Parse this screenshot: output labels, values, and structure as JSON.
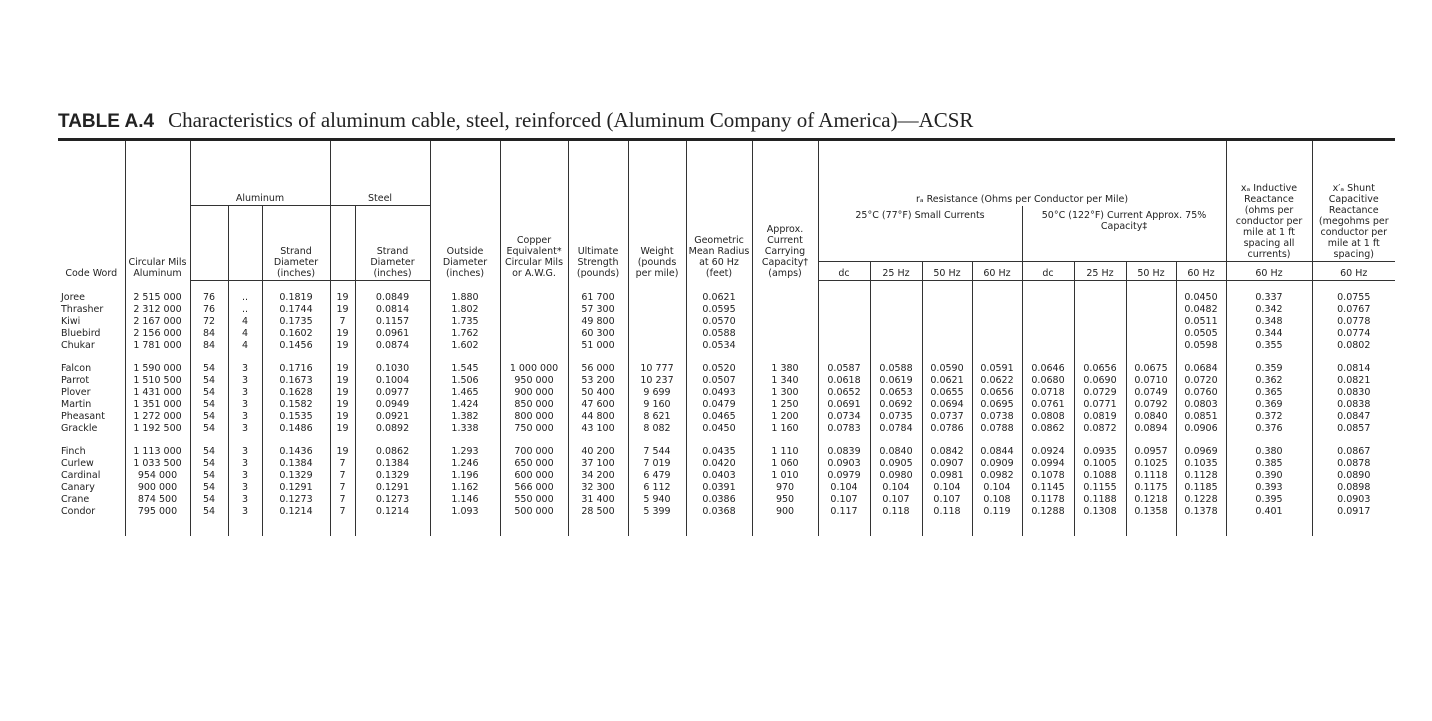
{
  "title": {
    "label": "TABLE A.4",
    "text": "Characteristics of aluminum cable, steel, reinforced (Aluminum Company of America)—ACSR"
  },
  "table": {
    "header": {
      "code_word": "Code Word",
      "circular_mils": "Circular Mils Aluminum",
      "aluminum": "Aluminum",
      "al_strand_diameter": "Strand Diameter (inches)",
      "steel": "Steel",
      "steel_strand_diameter": "Strand Diameter (inches)",
      "outside_diameter": "Outside Diameter (inches)",
      "copper_equivalent": "Copper Equivalent* Circular Mils or A.W.G.",
      "ultimate_strength": "Ultimate Strength (pounds)",
      "weight": "Weight (pounds per mile)",
      "gmr": "Geometric Mean Radius at 60 Hz (feet)",
      "current": "Approx. Current Carrying Capacity† (amps)",
      "resistance": "rₐ Resistance (Ohms per Conductor per Mile)",
      "resistance_25c": "25°C (77°F) Small Currents",
      "resistance_50c": "50°C (122°F) Current Approx. 75% Capacity‡",
      "frequencies": [
        "dc",
        "25 Hz",
        "50 Hz",
        "60 Hz",
        "dc",
        "25 Hz",
        "50 Hz",
        "60 Hz"
      ],
      "inductive": "xₐ Inductive Reactance (ohms per conductor per mile at 1 ft spacing all currents)",
      "inductive_freq": "60 Hz",
      "capacitive": "x′ₐ Shunt Capacitive Reactance (megohms per conductor per mile at 1 ft spacing)",
      "capacitive_freq": "60 Hz"
    },
    "groups": [
      [
        [
          "Joree",
          "2 515 000",
          "76",
          "..",
          "0.1819",
          "19",
          "0.0849",
          "1.880",
          null,
          "61 700",
          null,
          "0.0621",
          null,
          null,
          null,
          null,
          null,
          null,
          null,
          null,
          "0.0450",
          "0.337",
          "0.0755"
        ],
        [
          "Thrasher",
          "2 312 000",
          "76",
          "..",
          "0.1744",
          "19",
          "0.0814",
          "1.802",
          null,
          "57 300",
          null,
          "0.0595",
          null,
          null,
          null,
          null,
          null,
          null,
          null,
          null,
          "0.0482",
          "0.342",
          "0.0767"
        ],
        [
          "Kiwi",
          "2 167 000",
          "72",
          "4",
          "0.1735",
          "7",
          "0.1157",
          "1.735",
          null,
          "49 800",
          null,
          "0.0570",
          null,
          null,
          null,
          null,
          null,
          null,
          null,
          null,
          "0.0511",
          "0.348",
          "0.0778"
        ],
        [
          "Bluebird",
          "2 156 000",
          "84",
          "4",
          "0.1602",
          "19",
          "0.0961",
          "1.762",
          null,
          "60 300",
          null,
          "0.0588",
          null,
          null,
          null,
          null,
          null,
          null,
          null,
          null,
          "0.0505",
          "0.344",
          "0.0774"
        ],
        [
          "Chukar",
          "1 781 000",
          "84",
          "4",
          "0.1456",
          "19",
          "0.0874",
          "1.602",
          null,
          "51 000",
          null,
          "0.0534",
          null,
          null,
          null,
          null,
          null,
          null,
          null,
          null,
          "0.0598",
          "0.355",
          "0.0802"
        ]
      ],
      [
        [
          "Falcon",
          "1 590 000",
          "54",
          "3",
          "0.1716",
          "19",
          "0.1030",
          "1.545",
          "1 000 000",
          "56 000",
          "10 777",
          "0.0520",
          "1 380",
          "0.0587",
          "0.0588",
          "0.0590",
          "0.0591",
          "0.0646",
          "0.0656",
          "0.0675",
          "0.0684",
          "0.359",
          "0.0814"
        ],
        [
          "Parrot",
          "1 510 500",
          "54",
          "3",
          "0.1673",
          "19",
          "0.1004",
          "1.506",
          "950 000",
          "53 200",
          "10 237",
          "0.0507",
          "1 340",
          "0.0618",
          "0.0619",
          "0.0621",
          "0.0622",
          "0.0680",
          "0.0690",
          "0.0710",
          "0.0720",
          "0.362",
          "0.0821"
        ],
        [
          "Plover",
          "1 431 000",
          "54",
          "3",
          "0.1628",
          "19",
          "0.0977",
          "1.465",
          "900 000",
          "50 400",
          "9 699",
          "0.0493",
          "1 300",
          "0.0652",
          "0.0653",
          "0.0655",
          "0.0656",
          "0.0718",
          "0.0729",
          "0.0749",
          "0.0760",
          "0.365",
          "0.0830"
        ],
        [
          "Martin",
          "1 351 000",
          "54",
          "3",
          "0.1582",
          "19",
          "0.0949",
          "1.424",
          "850 000",
          "47 600",
          "9 160",
          "0.0479",
          "1 250",
          "0.0691",
          "0.0692",
          "0.0694",
          "0.0695",
          "0.0761",
          "0.0771",
          "0.0792",
          "0.0803",
          "0.369",
          "0.0838"
        ],
        [
          "Pheasant",
          "1 272 000",
          "54",
          "3",
          "0.1535",
          "19",
          "0.0921",
          "1.382",
          "800 000",
          "44 800",
          "8 621",
          "0.0465",
          "1 200",
          "0.0734",
          "0.0735",
          "0.0737",
          "0.0738",
          "0.0808",
          "0.0819",
          "0.0840",
          "0.0851",
          "0.372",
          "0.0847"
        ],
        [
          "Grackle",
          "1 192 500",
          "54",
          "3",
          "0.1486",
          "19",
          "0.0892",
          "1.338",
          "750 000",
          "43 100",
          "8 082",
          "0.0450",
          "1 160",
          "0.0783",
          "0.0784",
          "0.0786",
          "0.0788",
          "0.0862",
          "0.0872",
          "0.0894",
          "0.0906",
          "0.376",
          "0.0857"
        ]
      ],
      [
        [
          "Finch",
          "1 113 000",
          "54",
          "3",
          "0.1436",
          "19",
          "0.0862",
          "1.293",
          "700 000",
          "40 200",
          "7 544",
          "0.0435",
          "1 110",
          "0.0839",
          "0.0840",
          "0.0842",
          "0.0844",
          "0.0924",
          "0.0935",
          "0.0957",
          "0.0969",
          "0.380",
          "0.0867"
        ],
        [
          "Curlew",
          "1 033 500",
          "54",
          "3",
          "0.1384",
          "7",
          "0.1384",
          "1.246",
          "650 000",
          "37 100",
          "7 019",
          "0.0420",
          "1 060",
          "0.0903",
          "0.0905",
          "0.0907",
          "0.0909",
          "0.0994",
          "0.1005",
          "0.1025",
          "0.1035",
          "0.385",
          "0.0878"
        ],
        [
          "Cardinal",
          "954 000",
          "54",
          "3",
          "0.1329",
          "7",
          "0.1329",
          "1.196",
          "600 000",
          "34 200",
          "6 479",
          "0.0403",
          "1 010",
          "0.0979",
          "0.0980",
          "0.0981",
          "0.0982",
          "0.1078",
          "0.1088",
          "0.1118",
          "0.1128",
          "0.390",
          "0.0890"
        ],
        [
          "Canary",
          "900 000",
          "54",
          "3",
          "0.1291",
          "7",
          "0.1291",
          "1.162",
          "566 000",
          "32 300",
          "6 112",
          "0.0391",
          "970",
          "0.104",
          "0.104",
          "0.104",
          "0.104",
          "0.1145",
          "0.1155",
          "0.1175",
          "0.1185",
          "0.393",
          "0.0898"
        ],
        [
          "Crane",
          "874 500",
          "54",
          "3",
          "0.1273",
          "7",
          "0.1273",
          "1.146",
          "550 000",
          "31 400",
          "5 940",
          "0.0386",
          "950",
          "0.107",
          "0.107",
          "0.107",
          "0.108",
          "0.1178",
          "0.1188",
          "0.1218",
          "0.1228",
          "0.395",
          "0.0903"
        ],
        [
          "Condor",
          "795 000",
          "54",
          "3",
          "0.1214",
          "7",
          "0.1214",
          "1.093",
          "500 000",
          "28 500",
          "5 399",
          "0.0368",
          "900",
          "0.117",
          "0.118",
          "0.118",
          "0.119",
          "0.1288",
          "0.1308",
          "0.1358",
          "0.1378",
          "0.401",
          "0.0917"
        ]
      ]
    ]
  }
}
